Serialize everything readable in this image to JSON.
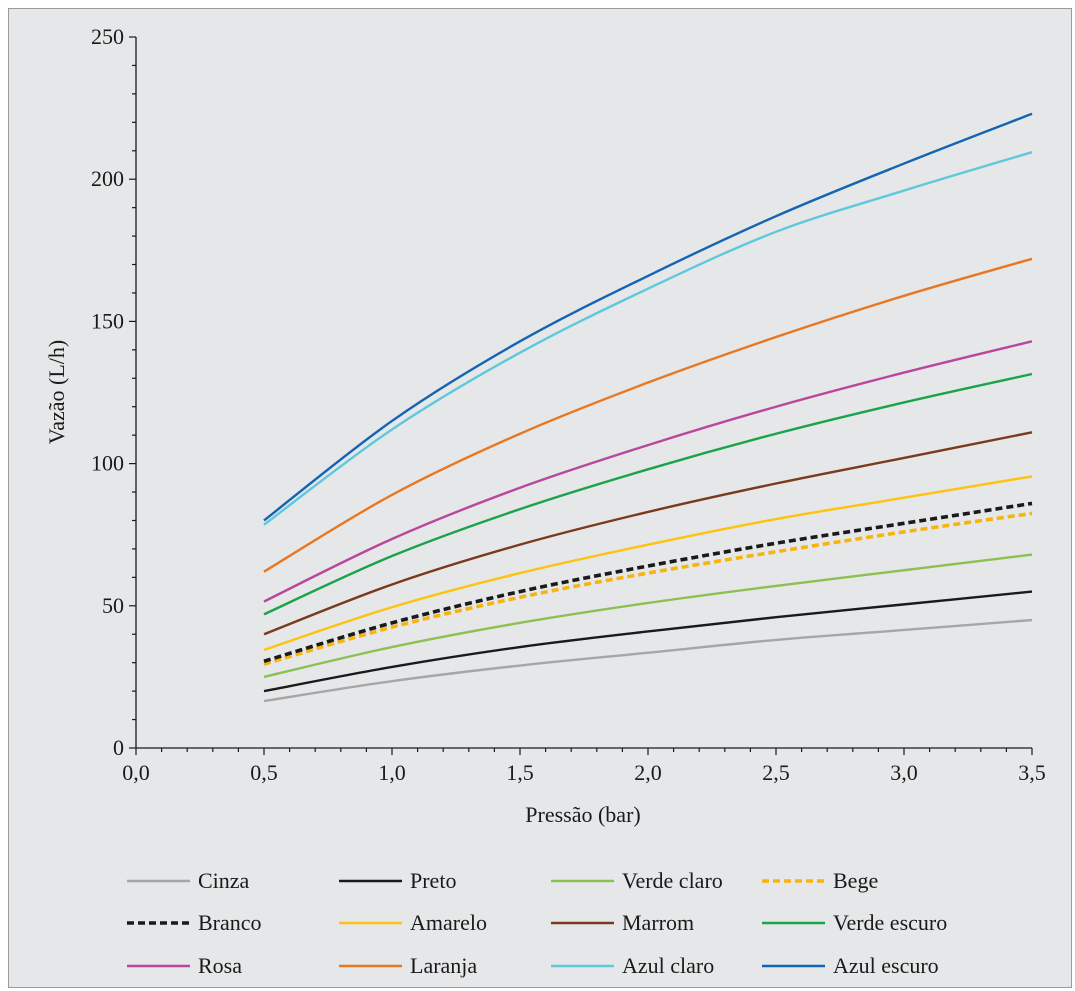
{
  "chart_data": {
    "type": "line",
    "xlabel": "Pressão (bar)",
    "ylabel": "Vazão (L/h)",
    "xlim": [
      0,
      3.5
    ],
    "ylim": [
      0,
      250
    ],
    "x_ticks": [
      "0,0",
      "0,5",
      "1,0",
      "1,5",
      "2,0",
      "2,5",
      "3,0",
      "3,5"
    ],
    "y_ticks": [
      "0",
      "50",
      "100",
      "150",
      "200",
      "250"
    ],
    "grid": false,
    "legend_position": "bottom",
    "x": [
      0.5,
      1.0,
      1.5,
      2.0,
      2.5,
      3.0,
      3.5
    ],
    "series": [
      {
        "name": "Cinza",
        "color": "#a6a6a6",
        "dash": false,
        "values": [
          16.5,
          23.5,
          29,
          33.5,
          38,
          41.5,
          45
        ]
      },
      {
        "name": "Preto",
        "color": "#1a1a1a",
        "dash": false,
        "values": [
          20,
          28.5,
          35.5,
          41,
          46,
          50.5,
          55
        ]
      },
      {
        "name": "Verde claro",
        "color": "#8cc152",
        "dash": false,
        "values": [
          25,
          35.5,
          44,
          51,
          57,
          62.5,
          68
        ]
      },
      {
        "name": "Bege",
        "color": "#f6b40f",
        "dash": true,
        "values": [
          29.5,
          42.5,
          53,
          61.5,
          69,
          76,
          82.5
        ]
      },
      {
        "name": "Branco",
        "color": "#1a1a1a",
        "dash": true,
        "values": [
          30.5,
          44,
          55,
          64,
          72,
          79,
          86
        ]
      },
      {
        "name": "Amarelo",
        "color": "#ffc20e",
        "dash": false,
        "values": [
          34.5,
          49.5,
          61.5,
          71.5,
          80.5,
          88,
          95.5
        ]
      },
      {
        "name": "Marrom",
        "color": "#7b3a1c",
        "dash": false,
        "values": [
          40,
          57.5,
          71.5,
          83,
          93,
          102,
          111
        ]
      },
      {
        "name": "Verde escuro",
        "color": "#1aa34a",
        "dash": false,
        "values": [
          47,
          67.5,
          84,
          98,
          110.5,
          121.5,
          131.5
        ]
      },
      {
        "name": "Rosa",
        "color": "#b9479d",
        "dash": false,
        "values": [
          51.5,
          73.5,
          91.5,
          106.5,
          120,
          132,
          143
        ]
      },
      {
        "name": "Laranja",
        "color": "#e87722",
        "dash": false,
        "values": [
          62,
          89,
          110.5,
          128.5,
          144.5,
          159,
          172
        ]
      },
      {
        "name": "Azul claro",
        "color": "#5ec8dc",
        "dash": false,
        "values": [
          78.5,
          112,
          139,
          161.5,
          181.5,
          196,
          209.5
        ]
      },
      {
        "name": "Azul escuro",
        "color": "#1464b4",
        "dash": false,
        "values": [
          80,
          115,
          143,
          166,
          187,
          205.5,
          223
        ]
      }
    ]
  }
}
